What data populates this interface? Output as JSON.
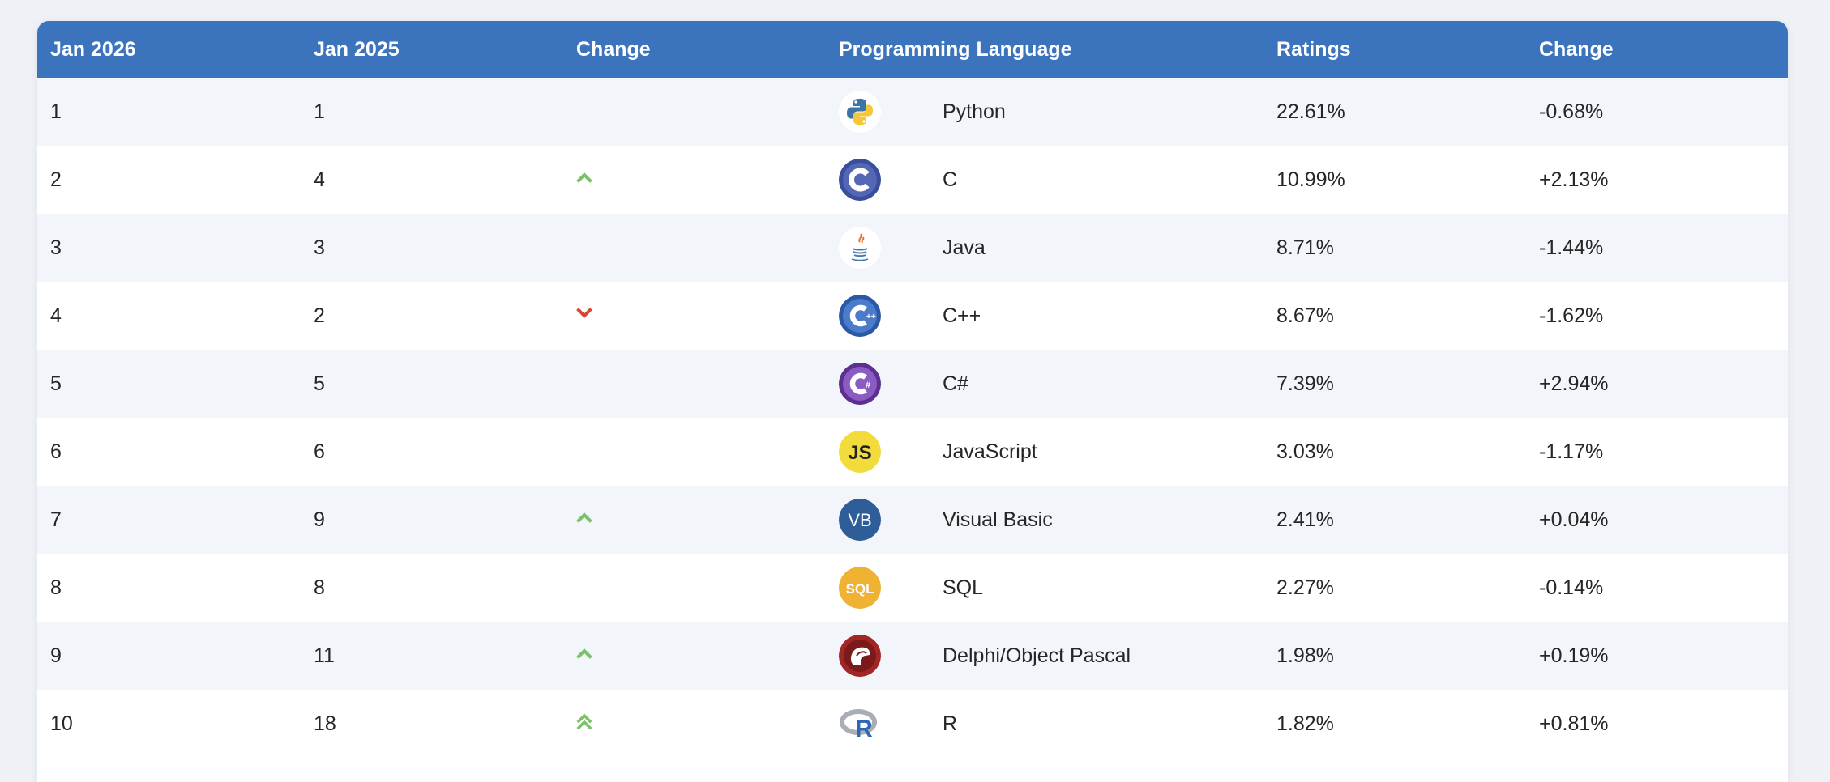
{
  "table": {
    "headers": [
      "Jan 2026",
      "Jan 2025",
      "Change",
      "Programming Language",
      "Ratings",
      "Change"
    ],
    "rows": [
      {
        "rank_now": "1",
        "rank_prev": "1",
        "trend": "none",
        "logo": "python-logo-icon",
        "language": "Python",
        "rating": "22.61%",
        "change": "-0.68%"
      },
      {
        "rank_now": "2",
        "rank_prev": "4",
        "trend": "up",
        "logo": "c-logo-icon",
        "language": "C",
        "rating": "10.99%",
        "change": "+2.13%"
      },
      {
        "rank_now": "3",
        "rank_prev": "3",
        "trend": "none",
        "logo": "java-logo-icon",
        "language": "Java",
        "rating": "8.71%",
        "change": "-1.44%"
      },
      {
        "rank_now": "4",
        "rank_prev": "2",
        "trend": "down",
        "logo": "cpp-logo-icon",
        "language": "C++",
        "rating": "8.67%",
        "change": "-1.62%"
      },
      {
        "rank_now": "5",
        "rank_prev": "5",
        "trend": "none",
        "logo": "csharp-logo-icon",
        "language": "C#",
        "rating": "7.39%",
        "change": "+2.94%"
      },
      {
        "rank_now": "6",
        "rank_prev": "6",
        "trend": "none",
        "logo": "javascript-logo-icon",
        "language": "JavaScript",
        "rating": "3.03%",
        "change": "-1.17%"
      },
      {
        "rank_now": "7",
        "rank_prev": "9",
        "trend": "up",
        "logo": "visual-basic-logo-icon",
        "language": "Visual Basic",
        "rating": "2.41%",
        "change": "+0.04%"
      },
      {
        "rank_now": "8",
        "rank_prev": "8",
        "trend": "none",
        "logo": "sql-logo-icon",
        "language": "SQL",
        "rating": "2.27%",
        "change": "-0.14%"
      },
      {
        "rank_now": "9",
        "rank_prev": "11",
        "trend": "up",
        "logo": "delphi-logo-icon",
        "language": "Delphi/Object Pascal",
        "rating": "1.98%",
        "change": "+0.19%"
      },
      {
        "rank_now": "10",
        "rank_prev": "18",
        "trend": "double-up",
        "logo": "r-logo-icon",
        "language": "R",
        "rating": "1.82%",
        "change": "+0.81%"
      }
    ]
  },
  "logo_text": {
    "javascript": "JS",
    "visual_basic": "VB",
    "sql": "SQL",
    "r": "R"
  },
  "colors": {
    "header_bg": "#3b74bd",
    "header_text": "#ffffff",
    "row_alt": "#f2f5fa",
    "trend_up": "#7cc16a",
    "trend_down": "#d9472b"
  }
}
